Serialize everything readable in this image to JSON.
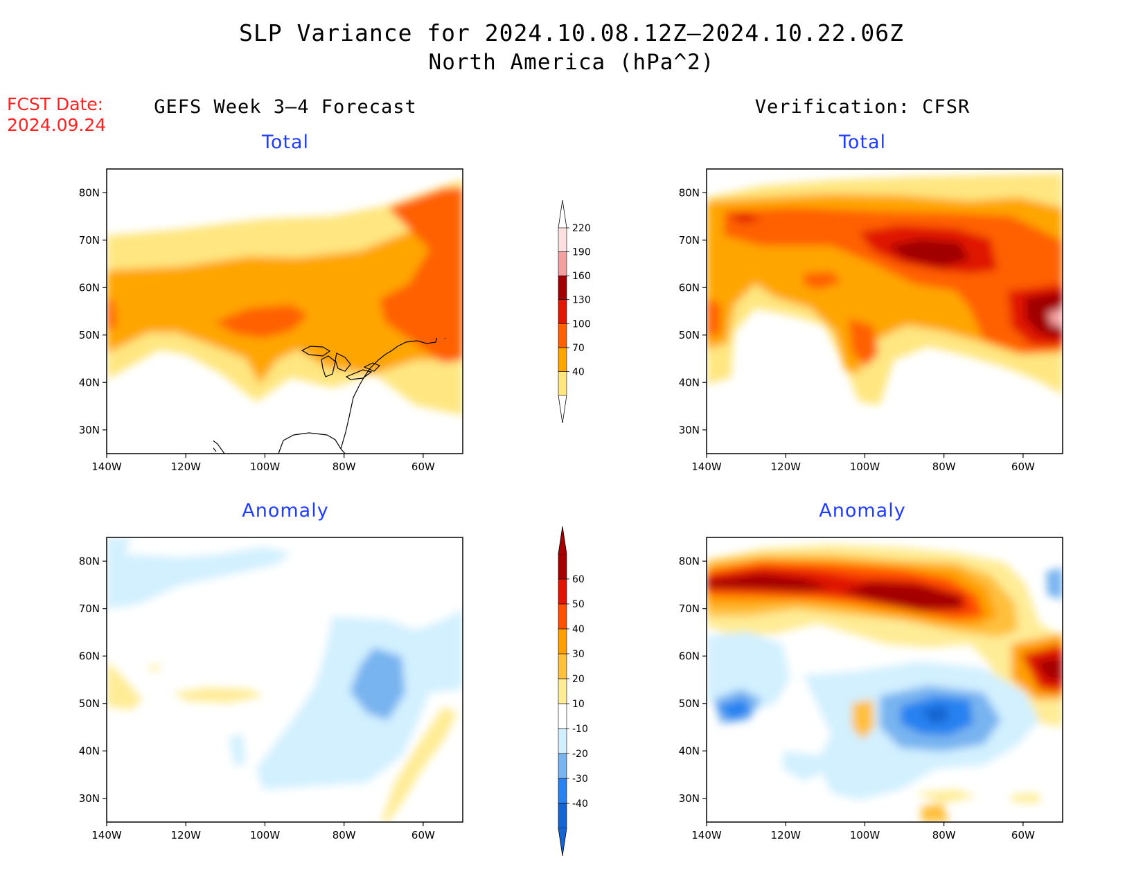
{
  "header": {
    "title": "SLP Variance for 2024.10.08.12Z–2024.10.22.06Z",
    "subtitle": "North America (hPa^2)",
    "fcst_label": "FCST Date:",
    "fcst_date": "2024.09.24"
  },
  "columns": {
    "left": "GEFS Week 3–4 Forecast",
    "right": "Verification: CFSR"
  },
  "panels": [
    {
      "id": "gefs-total",
      "title": "Total",
      "kind": "total",
      "column": "left"
    },
    {
      "id": "cfsr-total",
      "title": "Total",
      "kind": "total",
      "column": "right"
    },
    {
      "id": "gefs-anomaly",
      "title": "Anomaly",
      "kind": "anomaly",
      "column": "left"
    },
    {
      "id": "cfsr-anomaly",
      "title": "Anomaly",
      "kind": "anomaly",
      "column": "right"
    }
  ],
  "axes": {
    "lon_ticks": [
      "140W",
      "120W",
      "100W",
      "80W",
      "60W"
    ],
    "lat_ticks": [
      "80N",
      "70N",
      "60N",
      "50N",
      "40N",
      "30N"
    ],
    "lon_range": [
      -140,
      -50
    ],
    "lat_range": [
      25,
      85
    ]
  },
  "colorbars": {
    "total": {
      "labels": [
        "40",
        "70",
        "100",
        "130",
        "160",
        "190",
        "220"
      ],
      "colors": [
        "#ffe680",
        "#ffa500",
        "#ff6000",
        "#e01800",
        "#a00000",
        "#f4a0a0",
        "#ffe0e0"
      ]
    },
    "anomaly": {
      "labels": [
        "-40",
        "-30",
        "-20",
        "-10",
        "10",
        "20",
        "30",
        "40",
        "50",
        "60"
      ],
      "colors": [
        "#1464d2",
        "#2882f0",
        "#78b4f0",
        "#d2f0ff",
        "#ffffff",
        "#ffec96",
        "#ffc03c",
        "#ffa000",
        "#ff5000",
        "#e11400",
        "#a50000"
      ]
    }
  }
}
